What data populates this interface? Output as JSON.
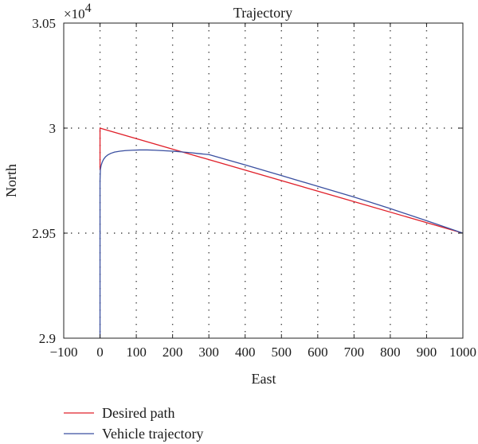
{
  "chart_data": {
    "type": "line",
    "title": "Trajectory",
    "xlabel": "East",
    "ylabel": "North",
    "y_multiplier_label": "×10",
    "y_multiplier_exponent": "4",
    "xlim": [
      -100,
      1000
    ],
    "ylim": [
      2.9,
      3.05
    ],
    "xticks": [
      -100,
      0,
      100,
      200,
      300,
      400,
      500,
      600,
      700,
      800,
      900,
      1000
    ],
    "xtick_labels": [
      "−100",
      "0",
      "100",
      "200",
      "300",
      "400",
      "500",
      "600",
      "700",
      "800",
      "900",
      "1000"
    ],
    "yticks": [
      2.9,
      2.95,
      3.0,
      3.05
    ],
    "ytick_labels": [
      "2.9",
      "2.95",
      "3",
      "3.05"
    ],
    "grid": true,
    "legend_position": "below-left",
    "series": [
      {
        "name": "Desired path",
        "color": "#e0202a",
        "x": [
          0,
          0,
          1000
        ],
        "y": [
          2.98,
          3.0,
          2.95
        ]
      },
      {
        "name": "Vehicle trajectory",
        "color": "#3a4fa0",
        "x": [
          0,
          0,
          0,
          1,
          3,
          6,
          10,
          15,
          22,
          30,
          40,
          55,
          70,
          90,
          110,
          130,
          150,
          170,
          190,
          210,
          230,
          250,
          270,
          300,
          400,
          500,
          600,
          700,
          800,
          900,
          1000
        ],
        "y": [
          2.9,
          2.95,
          2.975,
          2.9803,
          2.9822,
          2.9838,
          2.9852,
          2.9863,
          2.9873,
          2.988,
          2.9886,
          2.989,
          2.9893,
          2.9895,
          2.9896,
          2.9896,
          2.9895,
          2.9893,
          2.9891,
          2.9889,
          2.9886,
          2.9883,
          2.9879,
          2.9874,
          2.9825,
          2.9774,
          2.9723,
          2.9672,
          2.9617,
          2.9559,
          2.95
        ]
      }
    ]
  }
}
